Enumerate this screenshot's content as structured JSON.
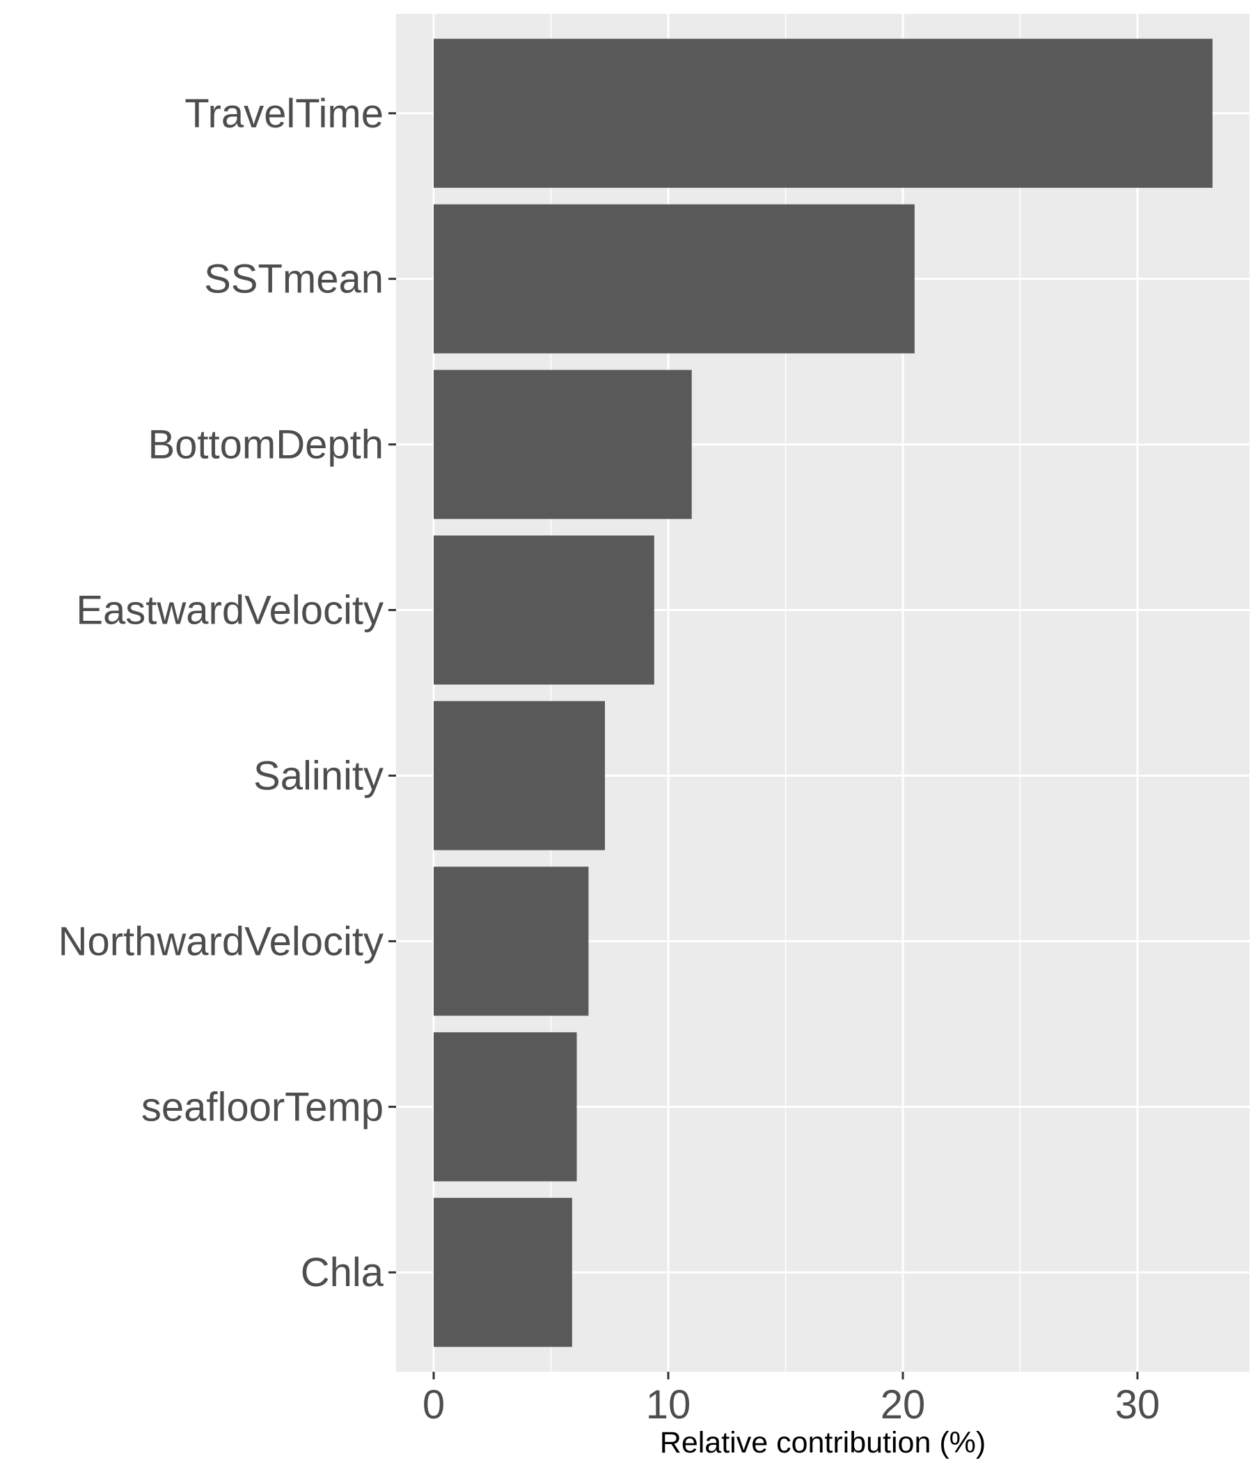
{
  "chart_data": {
    "type": "bar",
    "orientation": "horizontal",
    "categories": [
      "TravelTime",
      "SSTmean",
      "BottomDepth",
      "EastwardVelocity",
      "Salinity",
      "NorthwardVelocity",
      "seafloorTemp",
      "Chla"
    ],
    "values": [
      33.2,
      20.5,
      11.0,
      9.4,
      7.3,
      6.6,
      6.1,
      5.9
    ],
    "title": "",
    "xlabel": "Relative contribution (%)",
    "ylabel": "",
    "xlim": [
      -1.6,
      34.8
    ],
    "xticks": [
      0,
      10,
      20,
      30
    ],
    "grid": true,
    "legend": "none",
    "colors": {
      "panel": "#ebebeb",
      "bar": "#595959",
      "grid_major": "#ffffff",
      "tick_label": "#4d4d4d",
      "axis_title": "#000000"
    }
  }
}
